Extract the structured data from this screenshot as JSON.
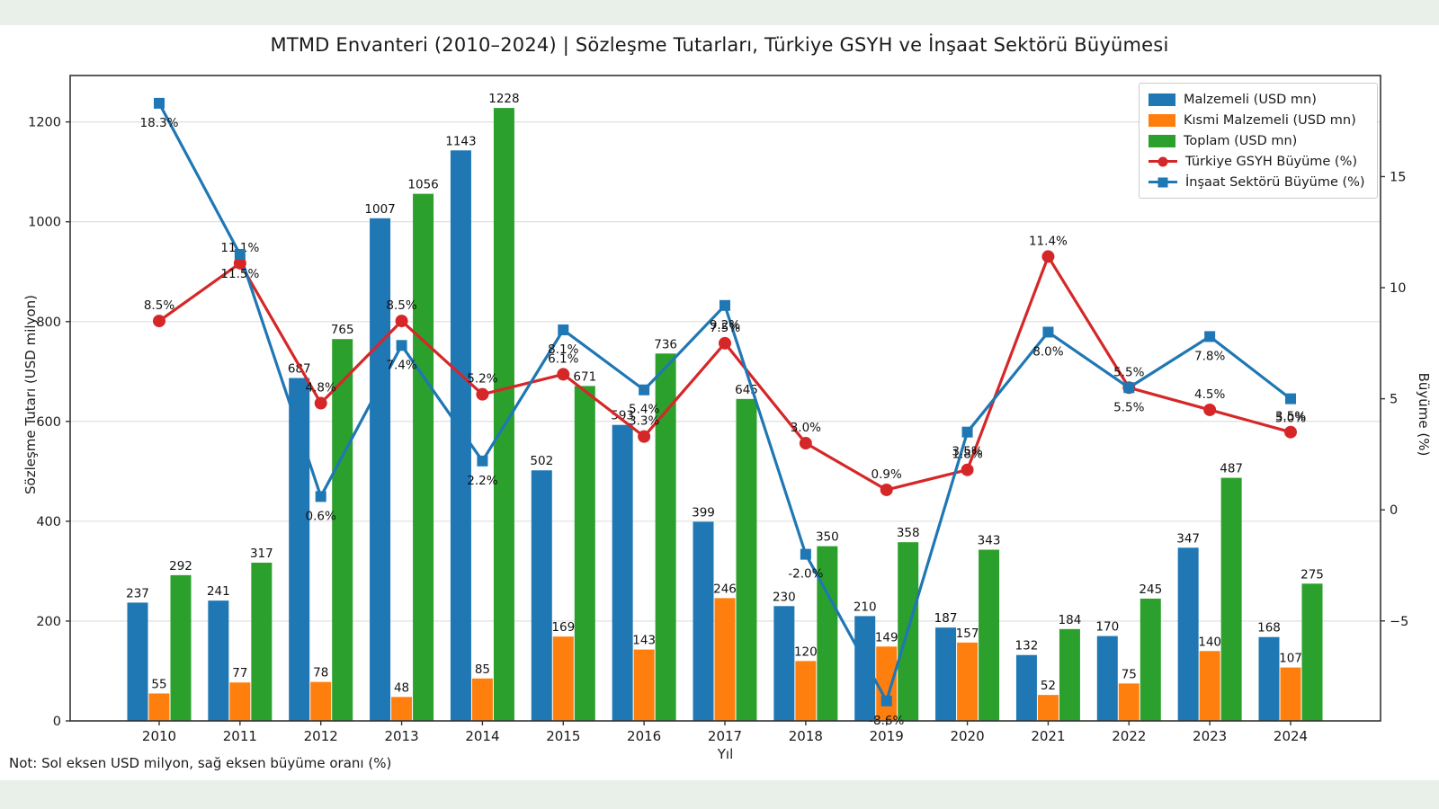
{
  "page": {
    "title": "MTMD Envanteri (2010–2024) | Sözleşme Tutarları, Türkiye GSYH ve İnşaat Sektörü Büyümesi",
    "note": "Not: Sol eksen USD milyon, sağ eksen büyüme oranı (%)",
    "background_color": "#e9efe9",
    "figure_color": "#ffffff"
  },
  "chart_data": {
    "type": "bar+line",
    "title": "MTMD Envanteri (2010–2024) | Sözleşme Tutarları, Türkiye GSYH ve İnşaat Sektörü Büyümesi",
    "xlabel": "Yıl",
    "categories": [
      2010,
      2011,
      2012,
      2013,
      2014,
      2015,
      2016,
      2017,
      2018,
      2019,
      2020,
      2021,
      2022,
      2023,
      2024
    ],
    "bar_series": [
      {
        "name": "Malzemeli (USD mn)",
        "slug": "malzemeli",
        "color": "#1f77b4",
        "values": [
          237,
          241,
          687,
          1007,
          1143,
          502,
          593,
          399,
          230,
          210,
          187,
          132,
          170,
          347,
          168
        ]
      },
      {
        "name": "Kısmi Malzemeli (USD mn)",
        "slug": "kismi-malzemeli",
        "color": "#ff7f0e",
        "values": [
          55,
          77,
          78,
          48,
          85,
          169,
          143,
          246,
          120,
          149,
          157,
          52,
          75,
          140,
          107
        ]
      },
      {
        "name": "Toplam (USD mn)",
        "slug": "toplam",
        "color": "#2ca02c",
        "values": [
          292,
          317,
          765,
          1056,
          1228,
          671,
          736,
          645,
          350,
          358,
          343,
          184,
          245,
          487,
          275
        ]
      }
    ],
    "line_series": [
      {
        "name": "Türkiye GSYH Büyüme (%)",
        "slug": "gsyh",
        "color": "#d62728",
        "marker": "circle",
        "label_side": "above",
        "values": [
          8.5,
          11.1,
          4.8,
          8.5,
          5.2,
          6.1,
          3.3,
          7.5,
          3.0,
          0.9,
          1.8,
          11.4,
          5.5,
          4.5,
          3.5
        ]
      },
      {
        "name": "İnşaat Sektörü Büyüme (%)",
        "slug": "insaat",
        "color": "#1f77b4",
        "marker": "square",
        "label_side": "below",
        "values": [
          18.3,
          11.5,
          0.6,
          7.4,
          2.2,
          8.1,
          5.4,
          9.2,
          -2.0,
          -8.6,
          3.5,
          8.0,
          5.5,
          7.8,
          5.0
        ]
      }
    ],
    "left_axis": {
      "label": "Sözleşme Tutarı (USD milyon)",
      "ticks": [
        0,
        200,
        400,
        600,
        800,
        1000,
        1200
      ],
      "range": [
        0,
        1293
      ]
    },
    "right_axis": {
      "label": "Büyüme (%)",
      "ticks": [
        15,
        10,
        5,
        0,
        -5
      ],
      "range": [
        -9.5,
        19.55
      ]
    },
    "grid": true,
    "legend_position": "upper right"
  }
}
